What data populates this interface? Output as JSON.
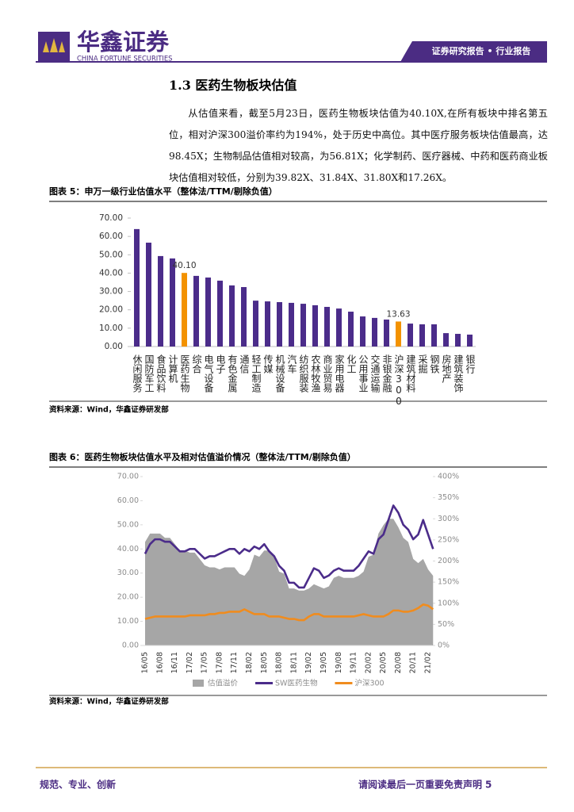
{
  "header": {
    "logo_cn": "华鑫证券",
    "logo_en": "CHINA FORTUNE SECURITIES",
    "banner": "证券研究报告 • 行业报告"
  },
  "section_title": "1.3 医药生物板块估值",
  "paragraph": "从估值来看，截至5月23日，医药生物板块估值为40.10X,在所有板块中排名第五位，相对沪深300溢价率约为194%，处于历史中高位。其中医疗服务板块估值最高，达98.45X；生物制品估值相对较高，为56.81X；化学制药、医疗器械、中药和医药商业板块估值相对较低，分别为39.82X、31.84X、31.80X和17.26X。",
  "chart_data": [
    {
      "type": "bar",
      "title": "图表 5：申万一级行业估值水平（整体法/TTM/剔除负值）",
      "categories": [
        "休闲服务",
        "国防军工",
        "食品饮料",
        "计算机",
        "医药生物",
        "综合",
        "电气设备",
        "电子",
        "有色金属",
        "通信",
        "轻工制造",
        "传媒",
        "机械设备",
        "汽车",
        "纺织服装",
        "农林牧渔",
        "商业贸易",
        "家用电器",
        "化工",
        "公用事业",
        "交通运输",
        "非银金融",
        "沪深300",
        "建筑材料",
        "采掘",
        "钢铁",
        "房地产",
        "建筑装饰",
        "银行"
      ],
      "values": [
        64.0,
        56.6,
        49.3,
        48.0,
        40.1,
        38.5,
        37.6,
        35.9,
        33.3,
        32.4,
        25.0,
        24.6,
        24.2,
        23.8,
        23.3,
        22.5,
        21.6,
        20.7,
        19.0,
        16.4,
        15.6,
        14.7,
        13.63,
        12.5,
        12.1,
        12.1,
        7.3,
        6.9,
        6.5
      ],
      "value_labels": [
        null,
        null,
        null,
        null,
        "40.10",
        null,
        null,
        null,
        null,
        null,
        null,
        null,
        null,
        null,
        null,
        null,
        null,
        null,
        null,
        null,
        null,
        null,
        "13.63",
        null,
        null,
        null,
        null,
        null,
        null
      ],
      "colors": [
        "#4b2c8a",
        "#4b2c8a",
        "#4b2c8a",
        "#4b2c8a",
        "#f39200",
        "#4b2c8a",
        "#4b2c8a",
        "#4b2c8a",
        "#4b2c8a",
        "#4b2c8a",
        "#4b2c8a",
        "#4b2c8a",
        "#4b2c8a",
        "#4b2c8a",
        "#4b2c8a",
        "#4b2c8a",
        "#4b2c8a",
        "#4b2c8a",
        "#4b2c8a",
        "#4b2c8a",
        "#4b2c8a",
        "#4b2c8a",
        "#f39200",
        "#4b2c8a",
        "#4b2c8a",
        "#4b2c8a",
        "#4b2c8a",
        "#4b2c8a",
        "#4b2c8a"
      ],
      "ylim": [
        0,
        70
      ],
      "yticks": [
        {
          "value": 0,
          "label": "0.00"
        },
        {
          "value": 10,
          "label": "10.00"
        },
        {
          "value": 20,
          "label": "20.00"
        },
        {
          "value": 30,
          "label": "30.00"
        },
        {
          "value": 40,
          "label": "40.00"
        },
        {
          "value": 50,
          "label": "50.00"
        },
        {
          "value": 60,
          "label": "60.00"
        },
        {
          "value": 70,
          "label": "70.00"
        }
      ],
      "source": "资料来源：Wind，华鑫证券研发部"
    },
    {
      "type": "line",
      "title": "图表 6：医药生物板块估值水平及相对估值溢价情况（整体法/TTM/剔除负值）",
      "x": [
        "16/05",
        null,
        null,
        "16/08",
        null,
        null,
        "16/11",
        null,
        null,
        "17/02",
        null,
        null,
        "17/05",
        null,
        null,
        "17/08",
        null,
        null,
        "17/11",
        null,
        null,
        "18/02",
        null,
        null,
        "18/05",
        null,
        null,
        "18/08",
        null,
        null,
        "18/11",
        null,
        null,
        "19/02",
        null,
        null,
        "19/05",
        null,
        null,
        "19/08",
        null,
        null,
        "19/11",
        null,
        null,
        "20/02",
        null,
        null,
        "20/05",
        null,
        null,
        "20/08",
        null,
        null,
        "20/11",
        null,
        null,
        "21/02",
        null
      ],
      "series": [
        {
          "name": "估值溢价",
          "type": "area",
          "axis": "y2",
          "color": "#a6a6a6",
          "values": [
            245,
            265,
            265,
            265,
            255,
            255,
            240,
            225,
            225,
            220,
            220,
            205,
            190,
            185,
            185,
            180,
            185,
            185,
            185,
            170,
            165,
            180,
            215,
            210,
            225,
            225,
            210,
            175,
            170,
            135,
            135,
            130,
            130,
            135,
            145,
            140,
            135,
            140,
            160,
            165,
            160,
            160,
            160,
            165,
            175,
            210,
            215,
            265,
            285,
            300,
            300,
            280,
            255,
            245,
            205,
            195,
            205,
            180,
            165
          ]
        },
        {
          "name": "SW医药生物",
          "type": "line",
          "color": "#4b2c8a",
          "values": [
            38,
            42,
            44,
            44,
            43,
            43,
            41,
            39,
            39,
            40,
            40,
            38,
            36,
            37,
            37,
            38,
            39,
            40,
            40,
            38,
            40,
            39,
            41,
            40,
            42,
            39,
            37,
            33,
            31,
            26,
            26,
            24,
            24,
            28,
            32,
            31,
            28,
            29,
            31,
            32,
            31,
            31,
            31,
            33,
            36,
            39,
            38,
            44,
            46,
            52,
            58,
            55,
            50,
            48,
            44,
            46,
            52,
            46,
            40
          ]
        },
        {
          "name": "沪深300",
          "type": "line",
          "color": "#f08c1e",
          "values": [
            11,
            11.5,
            12,
            12,
            12,
            12,
            12,
            12,
            12,
            12.5,
            12.5,
            12.5,
            12.5,
            13,
            13,
            13.5,
            13.5,
            14,
            14,
            14,
            15,
            14,
            13,
            13,
            13,
            12,
            12,
            12,
            11.5,
            11,
            11,
            10.5,
            10.5,
            12,
            13,
            13,
            12,
            12,
            12,
            12,
            12,
            12,
            12,
            12.5,
            13,
            12.5,
            12,
            12,
            12,
            13,
            14.5,
            14.5,
            14,
            14,
            14.5,
            15.5,
            17,
            16.5,
            15
          ]
        }
      ],
      "ylim": [
        0,
        70
      ],
      "yticks": [
        {
          "value": 0,
          "label": "0.00"
        },
        {
          "value": 10,
          "label": "10.00"
        },
        {
          "value": 20,
          "label": "20.00"
        },
        {
          "value": 30,
          "label": "30.00"
        },
        {
          "value": 40,
          "label": "40.00"
        },
        {
          "value": 50,
          "label": "50.00"
        },
        {
          "value": 60,
          "label": "60.00"
        },
        {
          "value": 70,
          "label": "70.00"
        }
      ],
      "y2lim": [
        0,
        400
      ],
      "y2ticks": [
        {
          "value": 0,
          "label": "0%"
        },
        {
          "value": 50,
          "label": "50%"
        },
        {
          "value": 100,
          "label": "100%"
        },
        {
          "value": 150,
          "label": "150%"
        },
        {
          "value": 200,
          "label": "200%"
        },
        {
          "value": 250,
          "label": "250%"
        },
        {
          "value": 300,
          "label": "300%"
        },
        {
          "value": 350,
          "label": "350%"
        },
        {
          "value": 400,
          "label": "400%"
        }
      ],
      "source": "资料来源：Wind，华鑫证券研发部"
    }
  ],
  "footer": {
    "motto": "规范、专业、创新",
    "disclaimer": "请阅读最后一页重要免责声明",
    "page_number": "5"
  }
}
